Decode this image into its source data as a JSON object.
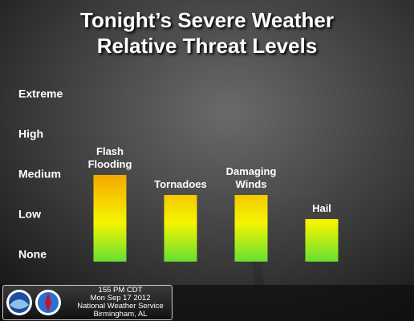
{
  "chart_data": {
    "type": "bar",
    "title": [
      "Tonight’s Severe Weather",
      "Relative Threat Levels"
    ],
    "categories": [
      "Flash Flooding",
      "Tornadoes",
      "Damaging Winds",
      "Hail"
    ],
    "values": [
      2,
      1.5,
      1.5,
      0.9
    ],
    "colors": [
      "#66e033",
      "#f5f500",
      "#f5a800"
    ],
    "ylim": [
      0,
      4
    ],
    "yticks": [
      {
        "value": 0,
        "label": "None"
      },
      {
        "value": 1,
        "label": "Low"
      },
      {
        "value": 2,
        "label": "Medium"
      },
      {
        "value": 3,
        "label": "High"
      },
      {
        "value": 4,
        "label": "Extreme"
      }
    ]
  },
  "footer": {
    "lines": [
      "155 PM CDT",
      "Mon Sep 17 2012",
      "National Weather Service",
      "Birmingham, AL"
    ]
  }
}
